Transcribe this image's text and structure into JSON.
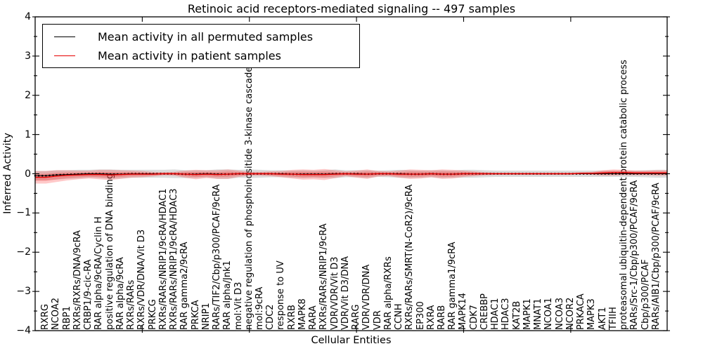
{
  "chart_data": {
    "type": "line",
    "title": "Retinoic acid receptors-mediated signaling -- 497 samples",
    "xlabel": "Cellular Entities",
    "ylabel": "Inferred Activity",
    "ylim": [
      -4,
      4
    ],
    "xlim": [
      0,
      59
    ],
    "ytick_labels": [
      "4",
      "3",
      "2",
      "1",
      "0",
      "−1",
      "−2",
      "−3",
      "−4"
    ],
    "ytick_values": [
      4,
      3,
      2,
      1,
      0,
      -1,
      -2,
      -3,
      -4
    ],
    "y_minor_step": 0.5,
    "x_major_ticks": [
      10,
      20,
      30,
      40,
      50
    ],
    "grid": false,
    "legend_position": "upper left",
    "categories": [
      "RXRG",
      "NCOA2",
      "RBP1",
      "RXRs/RXRs/DNA/9cRA",
      "CRBP1/9-cic-RA",
      "RAR alpha/9cRA/Cyclin H",
      "positive regulation of DNA binding",
      "RAR alpha/9cRA",
      "RXRs/RARs",
      "RXRs/VDR/DNA/Vit D3",
      "PRKCG",
      "RXRs/RARs/NRIP1/9cRA/HDAC1",
      "RXRs/RARs/NRIP1/9cRA/HDAC3",
      "RAR gamma2/9cRA",
      "PRKCA",
      "NRIP1",
      "RARs/TIF2/Cbp/p300/PCAF/9cRA",
      "RAR alpha/Jnk1",
      "mol:Vit D3",
      "negative regulation of phosphoinositide 3-kinase cascade",
      "mol:9cRA",
      "CDC2",
      "response to UV",
      "RXRB",
      "MAPK8",
      "RARA",
      "RXRs/RARs/NRIP1/9cRA",
      "VDR/VDR/Vit D3",
      "VDR/Vit D3/DNA",
      "RARG",
      "VDR/VDR/DNA",
      "VDR",
      "RAR alpha/RXRs",
      "CCNH",
      "RXRs/RARs/SMRT(N-CoR2)/9cRA",
      "EP300",
      "RXRA",
      "RARB",
      "RAR gamma1/9cRA",
      "MAPK14",
      "CDK7",
      "CREBBP",
      "HDAC1",
      "HDAC3",
      "KAT2B",
      "MAPK1",
      "MNAT1",
      "NCOA1",
      "NCOA3",
      "NCOR2",
      "PRKACA",
      "MAPK3",
      "AKT1",
      "TFIIH",
      "proteasomal ubiquitin-dependent protein catabolic process",
      "RARs/Src-1/Cbp/p300/PCAF/9cRA",
      "Cbp/p300/PCAF",
      "RARs/AIB1/Cbp/p300/PCAF/9cRA"
    ],
    "series": [
      {
        "name": "Mean activity in all permuted samples",
        "color": "#000000",
        "values": [
          -0.05,
          -0.03,
          -0.02,
          -0.01,
          0,
          0,
          -0.01,
          -0.01,
          0,
          0,
          0,
          0,
          0,
          -0.01,
          -0.01,
          0,
          -0.01,
          -0.01,
          0,
          0,
          0,
          0,
          0,
          -0.01,
          -0.01,
          -0.01,
          -0.01,
          0,
          0,
          0,
          -0.01,
          0,
          0,
          0,
          -0.01,
          -0.01,
          0,
          -0.01,
          -0.01,
          0,
          0,
          0,
          0,
          0,
          0,
          0,
          0,
          0,
          0,
          0,
          0,
          0,
          0,
          0,
          0,
          0,
          0,
          0
        ]
      },
      {
        "name": "Mean activity in patient samples",
        "color": "#e60000",
        "values": [
          -0.09,
          -0.06,
          -0.04,
          -0.03,
          -0.02,
          -0.02,
          -0.03,
          -0.02,
          -0.01,
          -0.01,
          -0.01,
          0,
          0,
          -0.01,
          -0.02,
          -0.01,
          -0.02,
          -0.01,
          0,
          0,
          0,
          0,
          -0.01,
          -0.01,
          -0.02,
          -0.02,
          -0.02,
          -0.01,
          0,
          -0.01,
          -0.01,
          0,
          0,
          -0.01,
          -0.01,
          -0.01,
          0,
          -0.01,
          -0.01,
          0,
          0,
          0,
          0,
          0,
          0,
          0,
          0,
          0,
          0,
          0,
          0.01,
          0.01,
          0.02,
          0.03,
          0.03,
          0.02,
          0.02,
          0.02
        ]
      }
    ],
    "bands": [
      {
        "name": "permuted-samples-std-band",
        "fill": "rgba(128,128,128,0.28)",
        "center_series": 0,
        "half_widths": [
          0.12,
          0.12,
          0.11,
          0.11,
          0.1,
          0.11,
          0.12,
          0.11,
          0.1,
          0.1,
          0.1,
          0.1,
          0.11,
          0.1,
          0.1,
          0.09,
          0.12,
          0.12,
          0.1,
          0.11,
          0.1,
          0.09,
          0.09,
          0.09,
          0.1,
          0.09,
          0.1,
          0.11,
          0.09,
          0.09,
          0.1,
          0.08,
          0.09,
          0.1,
          0.1,
          0.09,
          0.09,
          0.1,
          0.09,
          0.1,
          0.1,
          0.09,
          0.08,
          0.08,
          0.08,
          0.08,
          0.08,
          0.08,
          0.08,
          0.08,
          0.08,
          0.08,
          0.08,
          0.08,
          0.08,
          0.08,
          0.09,
          0.1
        ]
      },
      {
        "name": "patient-samples-std-band",
        "fill": "rgba(255,30,30,0.24)",
        "center_series": 1,
        "inner_ratio": 0.55,
        "half_widths": [
          0.16,
          0.15,
          0.13,
          0.11,
          0.1,
          0.12,
          0.13,
          0.11,
          0.09,
          0.08,
          0.06,
          0.04,
          0.05,
          0.09,
          0.12,
          0.1,
          0.11,
          0.12,
          0.08,
          0.05,
          0.05,
          0.06,
          0.08,
          0.11,
          0.13,
          0.12,
          0.14,
          0.1,
          0.06,
          0.09,
          0.12,
          0.07,
          0.06,
          0.09,
          0.12,
          0.11,
          0.09,
          0.12,
          0.11,
          0.08,
          0.06,
          0.04,
          0.03,
          0.03,
          0.03,
          0.03,
          0.03,
          0.03,
          0.03,
          0.03,
          0.03,
          0.04,
          0.07,
          0.08,
          0.07,
          0.06,
          0.06,
          0.07
        ]
      }
    ]
  }
}
